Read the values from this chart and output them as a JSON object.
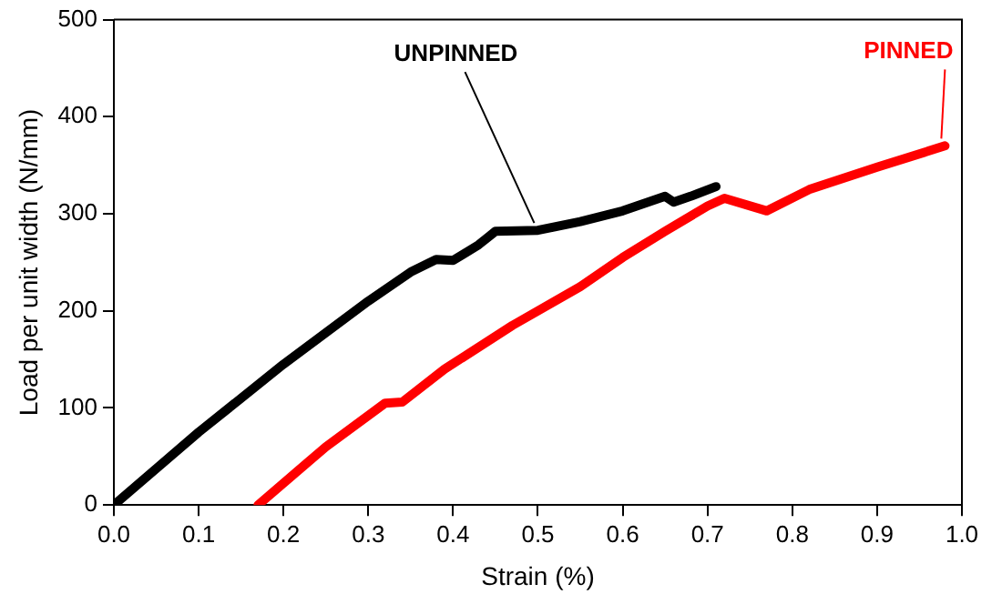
{
  "chart_data": {
    "type": "line",
    "xlabel": "Strain (%)",
    "ylabel": "Load per unit width (N/mm)",
    "xlim": [
      0,
      1
    ],
    "xticks": [
      {
        "value": 0,
        "label": "0.0"
      },
      0.1,
      0.2,
      0.3,
      0.4,
      0.5,
      0.6,
      0.7,
      0.8,
      0.9,
      {
        "value": 1,
        "label": "1.0"
      }
    ],
    "ylim": [
      0,
      500
    ],
    "yticks": [
      0,
      100,
      200,
      300,
      400,
      500
    ],
    "grid": false,
    "legend": false,
    "marker": "none",
    "line_style": "solid",
    "series": [
      {
        "name": "UNPINNED",
        "color": "#000000",
        "x": [
          0,
          0.1,
          0.15,
          0.2,
          0.3,
          0.35,
          0.38,
          0.4,
          0.43,
          0.45,
          0.5,
          0.55,
          0.6,
          0.65,
          0.66,
          0.68,
          0.71
        ],
        "values": [
          0,
          75,
          110,
          145,
          210,
          240,
          253,
          252,
          268,
          282,
          283,
          292,
          303,
          318,
          312,
          318,
          328
        ]
      },
      {
        "name": "PINNED",
        "color": "#ff0000",
        "x": [
          0.17,
          0.25,
          0.32,
          0.34,
          0.39,
          0.47,
          0.55,
          0.6,
          0.65,
          0.7,
          0.72,
          0.77,
          0.82,
          0.9,
          0.98
        ],
        "values": [
          0,
          60,
          105,
          106,
          140,
          185,
          225,
          255,
          282,
          308,
          316,
          303,
          325,
          348,
          370
        ]
      }
    ]
  }
}
